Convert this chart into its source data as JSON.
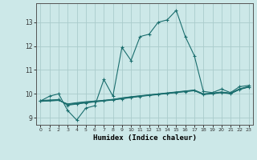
{
  "xlabel": "Humidex (Indice chaleur)",
  "ylabel": "",
  "background_color": "#cce8e8",
  "grid_color": "#aacccc",
  "line_color": "#1a6e6e",
  "xlim": [
    -0.5,
    23.5
  ],
  "ylim": [
    8.7,
    13.8
  ],
  "xticks": [
    0,
    1,
    2,
    3,
    4,
    5,
    6,
    7,
    8,
    9,
    10,
    11,
    12,
    13,
    14,
    15,
    16,
    17,
    18,
    19,
    20,
    21,
    22,
    23
  ],
  "yticks": [
    9,
    10,
    11,
    12,
    13
  ],
  "lines": [
    {
      "x": [
        0,
        1,
        2,
        3,
        4,
        5,
        6,
        7,
        8,
        9,
        10,
        11,
        12,
        13,
        14,
        15,
        16,
        17,
        18,
        19,
        20,
        21,
        22,
        23
      ],
      "y": [
        9.7,
        9.9,
        10.0,
        9.3,
        8.9,
        9.4,
        9.5,
        10.6,
        9.9,
        11.95,
        11.4,
        12.4,
        12.5,
        13.0,
        13.1,
        13.5,
        12.4,
        11.6,
        10.1,
        10.05,
        10.2,
        10.05,
        10.3,
        10.35
      ],
      "marker": true
    },
    {
      "x": [
        0,
        1,
        2,
        3,
        4,
        5,
        6,
        7,
        8,
        9,
        10,
        11,
        12,
        13,
        14,
        15,
        16,
        17,
        18,
        19,
        20,
        21,
        22,
        23
      ],
      "y": [
        9.72,
        9.74,
        9.76,
        9.52,
        9.57,
        9.62,
        9.66,
        9.7,
        9.74,
        9.79,
        9.84,
        9.89,
        9.93,
        9.97,
        10.01,
        10.05,
        10.09,
        10.13,
        9.97,
        10.0,
        10.05,
        10.0,
        10.18,
        10.28
      ],
      "marker": true
    },
    {
      "x": [
        0,
        1,
        2,
        3,
        4,
        5,
        6,
        7,
        8,
        9,
        10,
        11,
        12,
        13,
        14,
        15,
        16,
        17,
        18,
        19,
        20,
        21,
        22,
        23
      ],
      "y": [
        9.7,
        9.72,
        9.74,
        9.54,
        9.59,
        9.63,
        9.67,
        9.71,
        9.75,
        9.8,
        9.85,
        9.9,
        9.94,
        9.98,
        10.02,
        10.06,
        10.1,
        10.14,
        9.98,
        10.01,
        10.06,
        10.01,
        10.19,
        10.29
      ],
      "marker": false
    },
    {
      "x": [
        0,
        1,
        2,
        3,
        4,
        5,
        6,
        7,
        8,
        9,
        10,
        11,
        12,
        13,
        14,
        15,
        16,
        17,
        18,
        19,
        20,
        21,
        22,
        23
      ],
      "y": [
        9.69,
        9.71,
        9.73,
        9.56,
        9.61,
        9.65,
        9.68,
        9.72,
        9.76,
        9.82,
        9.87,
        9.91,
        9.95,
        9.99,
        10.03,
        10.07,
        10.11,
        10.15,
        9.99,
        10.02,
        10.07,
        10.02,
        10.2,
        10.3
      ],
      "marker": false
    },
    {
      "x": [
        0,
        1,
        2,
        3,
        4,
        5,
        6,
        7,
        8,
        9,
        10,
        11,
        12,
        13,
        14,
        15,
        16,
        17,
        18,
        19,
        20,
        21,
        22,
        23
      ],
      "y": [
        9.68,
        9.7,
        9.72,
        9.58,
        9.63,
        9.67,
        9.7,
        9.73,
        9.77,
        9.83,
        9.88,
        9.92,
        9.96,
        10.0,
        10.04,
        10.08,
        10.12,
        10.16,
        10.0,
        10.03,
        10.08,
        10.03,
        10.21,
        10.31
      ],
      "marker": false
    }
  ]
}
